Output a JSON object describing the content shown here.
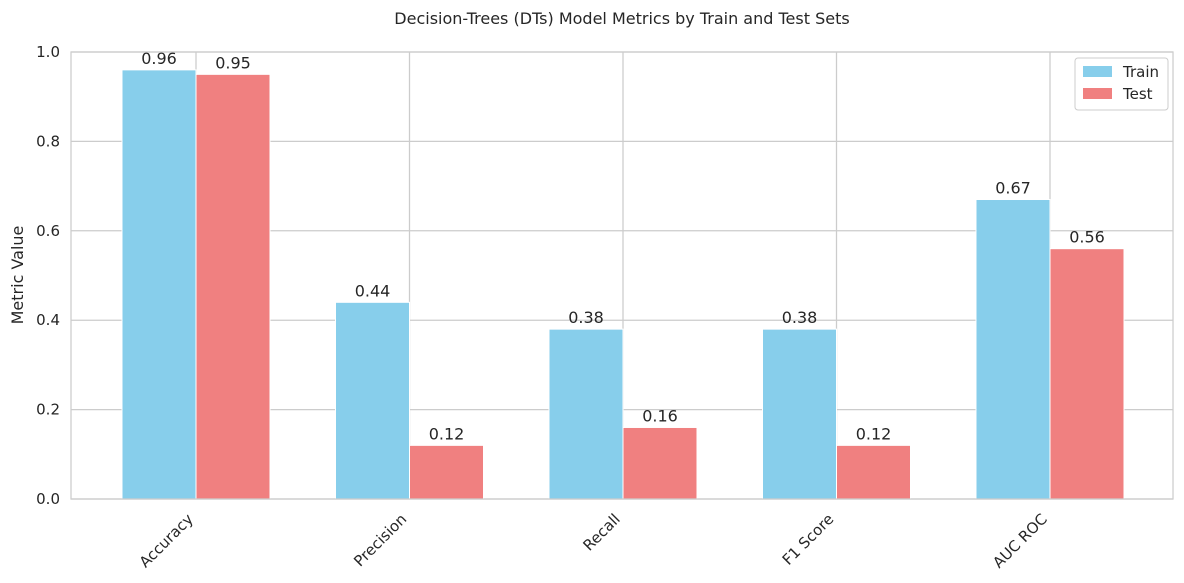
{
  "chart_data": {
    "type": "bar",
    "title": "Decision-Trees (DTs) Model Metrics by Train and Test Sets",
    "xlabel": "",
    "ylabel": "Metric Value",
    "categories": [
      "Accuracy",
      "Precision",
      "Recall",
      "F1 Score",
      "AUC ROC"
    ],
    "series": [
      {
        "name": "Train",
        "color": "#87CEEB",
        "values": [
          0.96,
          0.44,
          0.38,
          0.38,
          0.67
        ]
      },
      {
        "name": "Test",
        "color": "#F08080",
        "values": [
          0.95,
          0.12,
          0.16,
          0.12,
          0.56
        ]
      }
    ],
    "ylim": [
      0,
      1.0
    ],
    "yticks": [
      "0.0",
      "0.2",
      "0.4",
      "0.6",
      "0.8",
      "1.0"
    ],
    "grid": true,
    "legend_position": "top-right"
  }
}
